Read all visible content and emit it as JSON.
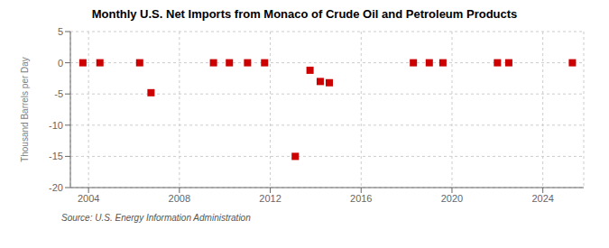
{
  "chart_data": {
    "type": "scatter",
    "title": "Monthly U.S. Net Imports from Monaco of Crude Oil and Petroleum Products",
    "ylabel": "Thousand Barrels per Day",
    "annotations": [
      "Source: U.S. Energy Information Administration"
    ],
    "x": [
      2003.75,
      2004.5,
      2006.25,
      2006.75,
      2009.5,
      2010.2,
      2011.0,
      2011.75,
      2013.1,
      2013.75,
      2014.2,
      2014.6,
      2018.3,
      2019.0,
      2019.6,
      2022.0,
      2022.5,
      2025.3
    ],
    "values": [
      0,
      0,
      0,
      -4.8,
      0,
      0,
      0,
      0,
      -15.0,
      -1.2,
      -3.0,
      -3.2,
      0,
      0,
      0,
      0,
      0,
      0
    ],
    "color": "#cc0000",
    "marker": "square",
    "xlim": [
      2003.2,
      2025.8
    ],
    "xticks": [
      2004,
      2008,
      2012,
      2016,
      2020,
      2024
    ],
    "ylim": [
      -20,
      5
    ],
    "yticks": [
      5,
      0,
      -5,
      -10,
      -15,
      -20
    ],
    "grid": true
  }
}
